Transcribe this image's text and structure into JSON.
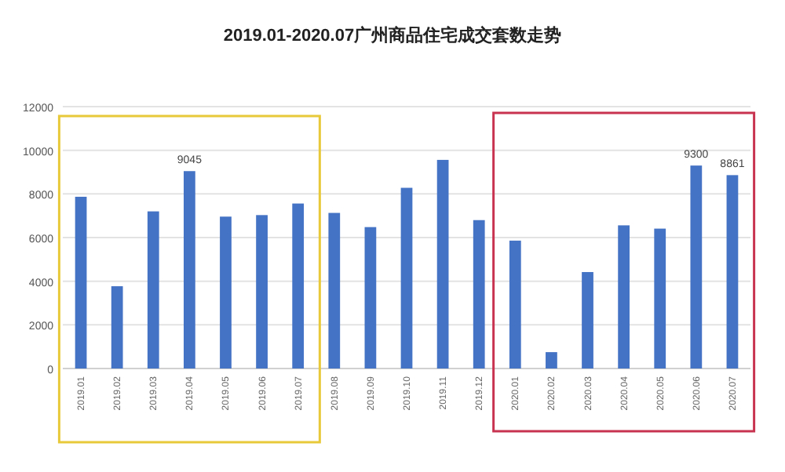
{
  "chart_data": {
    "type": "bar",
    "title": "2019.01-2020.07广州商品住宅成交套数走势",
    "categories": [
      "2019.01",
      "2019.02",
      "2019.03",
      "2019.04",
      "2019.05",
      "2019.06",
      "2019.07",
      "2019.08",
      "2019.09",
      "2019.10",
      "2019.11",
      "2019.12",
      "2020.01",
      "2020.02",
      "2020.03",
      "2020.04",
      "2020.05",
      "2020.06",
      "2020.07"
    ],
    "series": [
      {
        "color": "#4472c4",
        "values": [
          7870,
          3770,
          7200,
          9045,
          6960,
          7030,
          7560,
          7130,
          6480,
          8280,
          9560,
          6800,
          5860,
          750,
          4420,
          6560,
          6410,
          9300,
          8861
        ],
        "value_labels": [
          null,
          null,
          null,
          "9045",
          null,
          null,
          null,
          null,
          null,
          null,
          null,
          null,
          null,
          null,
          null,
          null,
          null,
          "9300",
          "8861"
        ]
      }
    ],
    "ylim": [
      0,
      12000
    ],
    "yticks": [
      0,
      2000,
      4000,
      6000,
      8000,
      10000,
      12000
    ],
    "grid": "y"
  }
}
